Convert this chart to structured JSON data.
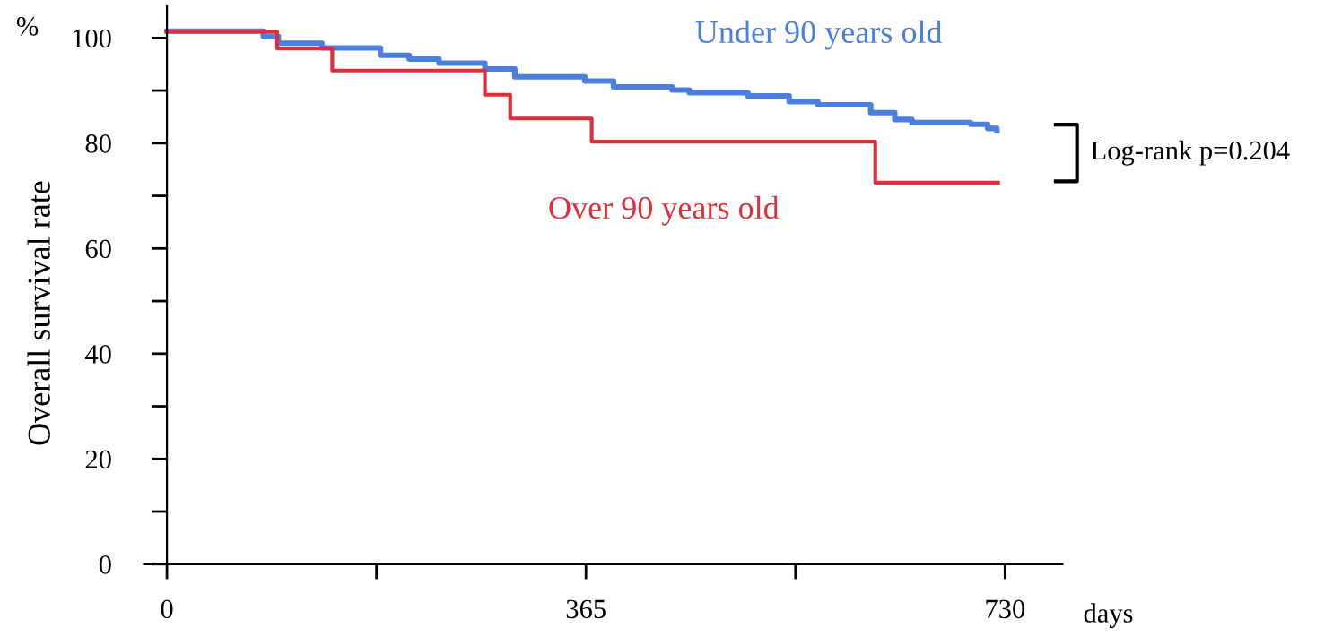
{
  "chart_data": {
    "type": "step",
    "xlabel": "days",
    "ylabel": "Overall survival rate",
    "annotations": [
      "%",
      "Log-rank p=0.204"
    ],
    "series": [
      {
        "name": "Under 90 years old",
        "color": "#4a7fe0",
        "x": [
          0,
          84,
          97,
          135,
          186,
          211,
          237,
          277,
          303,
          364,
          389,
          440,
          455,
          506,
          542,
          567,
          613,
          634,
          649,
          700,
          715,
          723
        ],
        "values": [
          101.3,
          100.3,
          99.0,
          98.1,
          96.7,
          96.0,
          95.2,
          94.1,
          92.6,
          91.8,
          90.7,
          90.1,
          89.6,
          89.0,
          87.9,
          87.3,
          85.8,
          84.5,
          83.9,
          83.6,
          82.8,
          82.4
        ]
      },
      {
        "name": "Over 90 years old",
        "color": "#d9303a",
        "x": [
          0,
          96,
          144,
          277,
          299,
          370,
          617,
          724
        ],
        "values": [
          101.2,
          98.0,
          93.8,
          89.2,
          84.7,
          80.3,
          72.5,
          72.5
        ]
      }
    ],
    "xlim": [
      -20,
      780
    ],
    "xticks": [
      0,
      {
        "value": 182.5,
        "label": null
      },
      365,
      {
        "value": 547.5,
        "label": null
      },
      730
    ],
    "ylim": [
      0,
      106
    ],
    "yticks": [
      0,
      {
        "value": 10,
        "label": null
      },
      20,
      {
        "value": 30,
        "label": null
      },
      40,
      {
        "value": 50,
        "label": null
      },
      60,
      {
        "value": 70,
        "label": null
      },
      80,
      {
        "value": 90,
        "label": null
      },
      100
    ],
    "grid": false,
    "legend": false
  }
}
